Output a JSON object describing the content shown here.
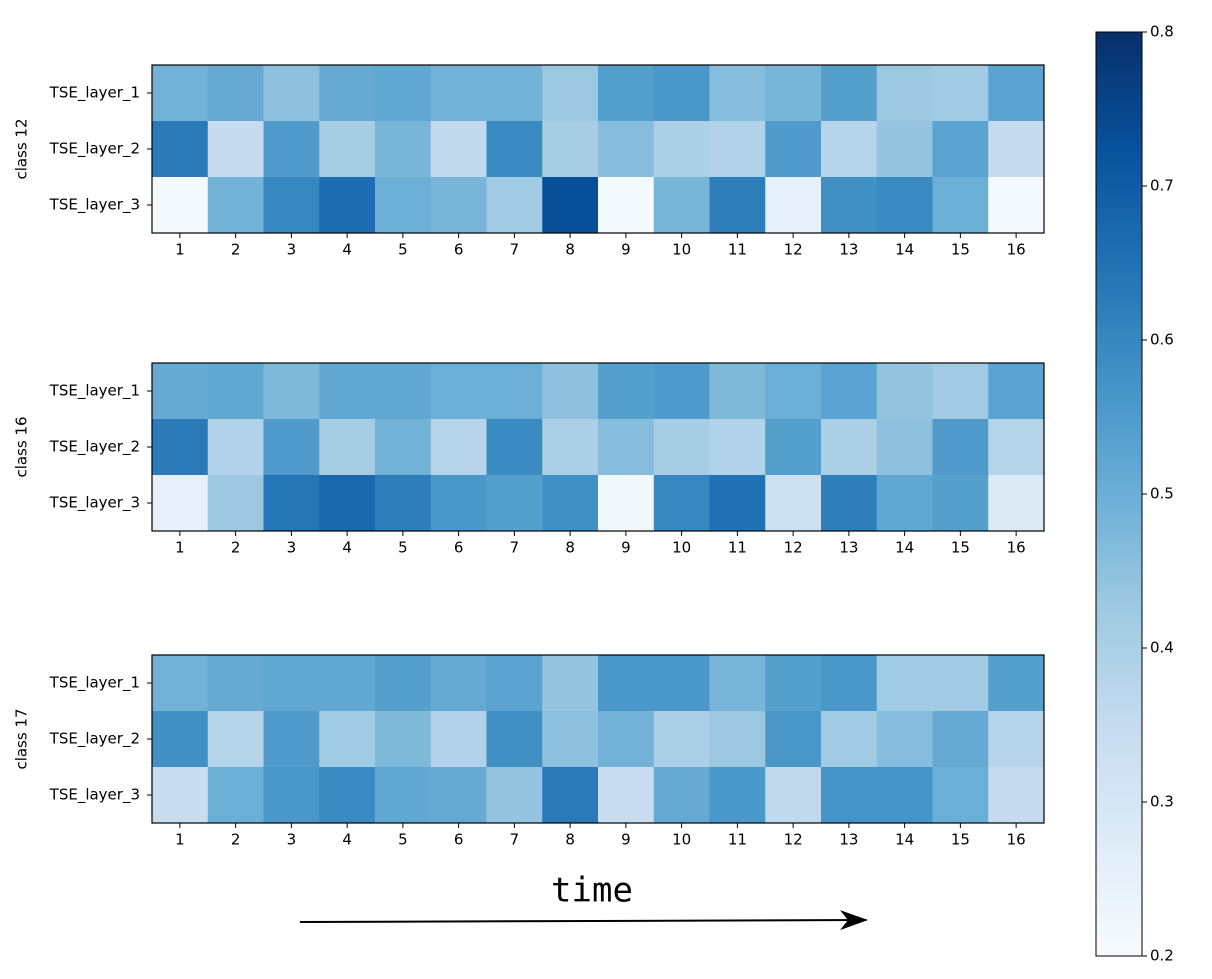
{
  "chart_data": [
    {
      "type": "heatmap",
      "ylabel": "class 12",
      "categories": [
        "1",
        "2",
        "3",
        "4",
        "5",
        "6",
        "7",
        "8",
        "9",
        "10",
        "11",
        "12",
        "13",
        "14",
        "15",
        "16"
      ],
      "rows": [
        "TSE_layer_1",
        "TSE_layer_2",
        "TSE_layer_3"
      ],
      "values": [
        [
          0.49,
          0.51,
          0.45,
          0.51,
          0.52,
          0.49,
          0.49,
          0.43,
          0.54,
          0.56,
          0.46,
          0.48,
          0.54,
          0.43,
          0.42,
          0.53
        ],
        [
          0.63,
          0.35,
          0.55,
          0.41,
          0.48,
          0.36,
          0.59,
          0.41,
          0.46,
          0.4,
          0.39,
          0.55,
          0.38,
          0.44,
          0.53,
          0.35
        ],
        [
          0.21,
          0.49,
          0.6,
          0.66,
          0.5,
          0.48,
          0.42,
          0.73,
          0.21,
          0.48,
          0.62,
          0.25,
          0.58,
          0.59,
          0.5,
          0.21
        ]
      ],
      "colormap": "Blues",
      "zlim": [
        0.2,
        0.8
      ],
      "zticks": [
        0.2,
        0.3,
        0.4,
        0.5,
        0.6,
        0.7,
        0.8
      ]
    },
    {
      "type": "heatmap",
      "ylabel": "class 16",
      "categories": [
        "1",
        "2",
        "3",
        "4",
        "5",
        "6",
        "7",
        "8",
        "9",
        "10",
        "11",
        "12",
        "13",
        "14",
        "15",
        "16"
      ],
      "rows": [
        "TSE_layer_1",
        "TSE_layer_2",
        "TSE_layer_3"
      ],
      "values": [
        [
          0.51,
          0.52,
          0.47,
          0.52,
          0.52,
          0.5,
          0.5,
          0.45,
          0.54,
          0.55,
          0.47,
          0.5,
          0.53,
          0.44,
          0.42,
          0.53
        ],
        [
          0.63,
          0.39,
          0.55,
          0.41,
          0.49,
          0.38,
          0.59,
          0.4,
          0.46,
          0.41,
          0.39,
          0.54,
          0.4,
          0.45,
          0.55,
          0.38
        ],
        [
          0.25,
          0.43,
          0.64,
          0.67,
          0.62,
          0.56,
          0.54,
          0.58,
          0.22,
          0.6,
          0.65,
          0.33,
          0.62,
          0.52,
          0.54,
          0.28
        ]
      ],
      "colormap": "Blues",
      "zlim": [
        0.2,
        0.8
      ]
    },
    {
      "type": "heatmap",
      "ylabel": "class 17",
      "xlabel": "time",
      "categories": [
        "1",
        "2",
        "3",
        "4",
        "5",
        "6",
        "7",
        "8",
        "9",
        "10",
        "11",
        "12",
        "13",
        "14",
        "15",
        "16"
      ],
      "rows": [
        "TSE_layer_1",
        "TSE_layer_2",
        "TSE_layer_3"
      ],
      "values": [
        [
          0.49,
          0.51,
          0.52,
          0.52,
          0.54,
          0.51,
          0.53,
          0.44,
          0.56,
          0.56,
          0.48,
          0.54,
          0.56,
          0.42,
          0.42,
          0.54
        ],
        [
          0.58,
          0.38,
          0.55,
          0.42,
          0.47,
          0.39,
          0.58,
          0.45,
          0.49,
          0.4,
          0.43,
          0.56,
          0.42,
          0.46,
          0.51,
          0.38
        ],
        [
          0.34,
          0.5,
          0.56,
          0.59,
          0.52,
          0.51,
          0.44,
          0.63,
          0.34,
          0.51,
          0.56,
          0.36,
          0.57,
          0.57,
          0.5,
          0.35
        ]
      ],
      "colormap": "Blues",
      "zlim": [
        0.2,
        0.8
      ]
    }
  ]
}
